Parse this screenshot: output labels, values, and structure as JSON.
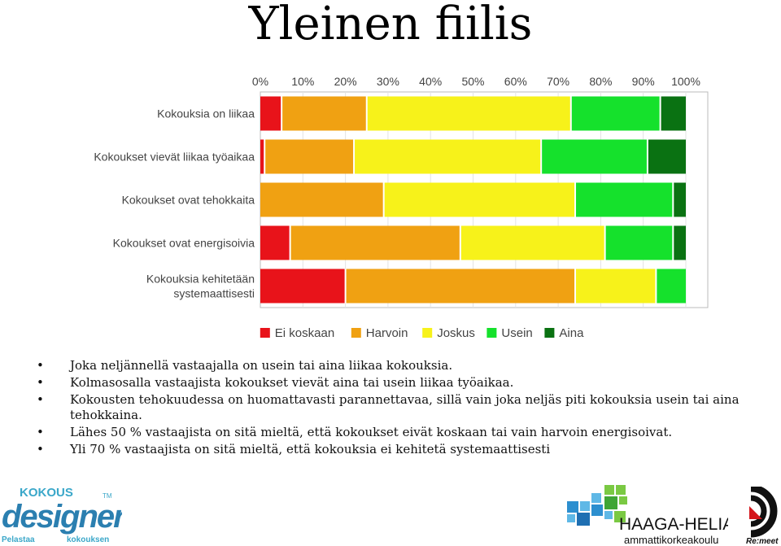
{
  "title": "Yleinen fiilis",
  "chart_data": {
    "type": "bar",
    "orientation": "horizontal",
    "stacked": true,
    "percent": true,
    "xlim": [
      0,
      100
    ],
    "x_ticks": [
      "0%",
      "10%",
      "20%",
      "30%",
      "40%",
      "50%",
      "60%",
      "70%",
      "80%",
      "90%",
      "100%"
    ],
    "categories": [
      "Kokouksia on liikaa",
      "Kokoukset vievät liikaa työaikaa",
      "Kokoukset ovat tehokkaita",
      "Kokoukset ovat energisoivia",
      "Kokouksia kehitetään systemaattisesti"
    ],
    "category_lines": [
      [
        "Kokouksia on liikaa"
      ],
      [
        "Kokoukset vievät liikaa työaikaa"
      ],
      [
        "Kokoukset ovat tehokkaita"
      ],
      [
        "Kokoukset ovat energisoivia"
      ],
      [
        "Kokouksia kehitetään",
        "systemaattisesti"
      ]
    ],
    "series": [
      {
        "name": "Ei koskaan",
        "color": "#e8131a",
        "values": [
          5,
          1,
          0,
          7,
          20
        ]
      },
      {
        "name": "Harvoin",
        "color": "#f0a112",
        "values": [
          20,
          21,
          29,
          40,
          54
        ]
      },
      {
        "name": "Joskus",
        "color": "#f7f21a",
        "values": [
          48,
          44,
          45,
          34,
          19
        ]
      },
      {
        "name": "Usein",
        "color": "#15e12c",
        "values": [
          21,
          25,
          23,
          16,
          7
        ]
      },
      {
        "name": "Aina",
        "color": "#0a7212",
        "values": [
          6,
          9,
          3,
          3,
          0
        ]
      }
    ],
    "grid": true,
    "legend": "bottom"
  },
  "bullets": [
    "Joka neljännellä vastaajalla on usein tai aina liikaa kokouksia.",
    "Kolmasosalla vastaajista kokoukset vievät aina tai usein liikaa työaikaa.",
    "Kokousten tehokuudessa on huomattavasti parannettavaa, sillä vain joka neljäs piti kokouksia usein tai aina tehokkaina.",
    "Lähes 50 % vastaajista on sitä mieltä, että kokoukset eivät koskaan tai vain harvoin energisoivat.",
    "Yli 70 % vastaajista on sitä mieltä, että kokouksia ei kehitetä systemaattisesti"
  ],
  "logos": {
    "kokous_designer": {
      "top": "KOKOUS",
      "main": "designer",
      "tm": "TM",
      "left_sub": "Pelastaa",
      "right_sub": "kokouksen"
    },
    "haaga_helia": {
      "name": "HAAGA-HELIA",
      "sub": "ammattikorkeakoulu"
    },
    "remeet": {
      "name": "Re:meet"
    }
  }
}
